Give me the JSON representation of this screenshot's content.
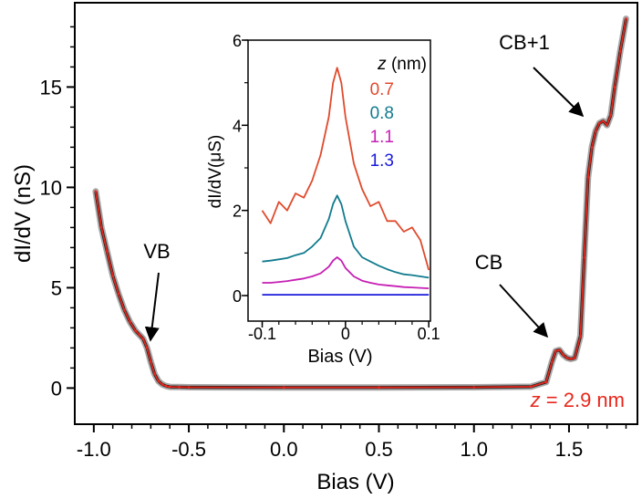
{
  "chart_data": [
    {
      "type": "line",
      "title": "",
      "xlabel": "Bias (V)",
      "ylabel": "dI/dV (nS)",
      "xlim": [
        -1.1,
        1.86
      ],
      "ylim": [
        -1.8,
        19.2
      ],
      "xticks": [
        -1.0,
        -0.5,
        0.0,
        0.5,
        1.0,
        1.5
      ],
      "xtick_labels": [
        "-1.0",
        "-0.5",
        "0.0",
        "0.5",
        "1.0",
        "1.5"
      ],
      "yticks": [
        0,
        5,
        10,
        15
      ],
      "ytick_labels": [
        "0",
        "5",
        "10",
        "15"
      ],
      "grid": false,
      "series": [
        {
          "name": "dI/dV at z = 2.9 nm",
          "color": "#e8271c",
          "x": [
            -0.99,
            -0.96,
            -0.93,
            -0.9,
            -0.87,
            -0.84,
            -0.81,
            -0.78,
            -0.76,
            -0.74,
            -0.72,
            -0.7,
            -0.68,
            -0.66,
            -0.64,
            -0.62,
            -0.6,
            -0.55,
            -0.5,
            0.0,
            0.5,
            1.0,
            1.3,
            1.38,
            1.41,
            1.43,
            1.45,
            1.47,
            1.49,
            1.51,
            1.53,
            1.56,
            1.58,
            1.6,
            1.62,
            1.64,
            1.66,
            1.68,
            1.7,
            1.72,
            1.74,
            1.77,
            1.8
          ],
          "y": [
            9.8,
            8.0,
            6.8,
            5.6,
            4.7,
            3.9,
            3.3,
            2.85,
            2.65,
            2.45,
            2.0,
            1.3,
            0.7,
            0.35,
            0.18,
            0.1,
            0.06,
            0.05,
            0.04,
            0.03,
            0.03,
            0.04,
            0.07,
            0.3,
            1.3,
            1.85,
            1.9,
            1.65,
            1.5,
            1.45,
            1.5,
            2.6,
            6.5,
            10.5,
            12.0,
            12.8,
            13.2,
            13.3,
            13.1,
            13.6,
            15.0,
            16.8,
            18.4
          ]
        }
      ],
      "annotations": [
        {
          "text": "VB",
          "x": -0.7,
          "y": 2.3
        },
        {
          "text": "CB",
          "x": 1.45,
          "y": 1.9
        },
        {
          "text": "CB+1",
          "x": 1.65,
          "y": 13.5
        }
      ],
      "label_italic": "z",
      "label_rest": " = 2.9 nm"
    },
    {
      "type": "line",
      "title": "",
      "xlabel": "Bias (V)",
      "ylabel": "dI/dV(μS)",
      "xlim": [
        -0.117,
        0.102
      ],
      "ylim": [
        -0.6,
        6.0
      ],
      "xticks": [
        -0.1,
        0.0,
        0.1
      ],
      "xtick_labels": [
        "-0.1",
        "0",
        "0.1"
      ],
      "yticks": [
        0,
        2,
        4,
        6
      ],
      "ytick_labels": [
        "0",
        "2",
        "4",
        "6"
      ],
      "legend_title_italic": "z",
      "legend_title_rest": " (nm)",
      "legend_position": "top-right",
      "x": [
        -0.1,
        -0.09,
        -0.08,
        -0.07,
        -0.06,
        -0.05,
        -0.04,
        -0.03,
        -0.02,
        -0.015,
        -0.01,
        -0.005,
        0.0,
        0.01,
        0.02,
        0.03,
        0.04,
        0.05,
        0.06,
        0.07,
        0.08,
        0.09,
        0.1
      ],
      "series": [
        {
          "name": "0.7",
          "color": "#e04a2c",
          "values": [
            2.0,
            1.7,
            2.2,
            2.0,
            2.4,
            2.3,
            2.7,
            3.3,
            4.2,
            5.0,
            5.35,
            5.0,
            4.2,
            3.1,
            2.5,
            2.1,
            2.2,
            1.75,
            1.75,
            1.5,
            1.6,
            1.3,
            0.6
          ]
        },
        {
          "name": "0.8",
          "color": "#117b8e",
          "values": [
            0.8,
            0.82,
            0.85,
            0.88,
            0.95,
            1.0,
            1.15,
            1.35,
            1.8,
            2.15,
            2.35,
            2.15,
            1.75,
            1.15,
            0.9,
            0.8,
            0.7,
            0.62,
            0.55,
            0.5,
            0.48,
            0.45,
            0.42
          ]
        },
        {
          "name": "1.1",
          "color": "#c61fb4",
          "values": [
            0.3,
            0.3,
            0.32,
            0.34,
            0.37,
            0.4,
            0.45,
            0.52,
            0.68,
            0.82,
            0.9,
            0.82,
            0.65,
            0.45,
            0.35,
            0.3,
            0.26,
            0.24,
            0.22,
            0.2,
            0.19,
            0.18,
            0.17
          ]
        },
        {
          "name": "1.3",
          "color": "#1a1adc",
          "values": [
            0.02,
            0.02,
            0.02,
            0.02,
            0.02,
            0.02,
            0.02,
            0.02,
            0.02,
            0.02,
            0.02,
            0.02,
            0.02,
            0.02,
            0.02,
            0.02,
            0.02,
            0.02,
            0.02,
            0.02,
            0.02,
            0.02,
            0.02
          ]
        }
      ]
    }
  ]
}
